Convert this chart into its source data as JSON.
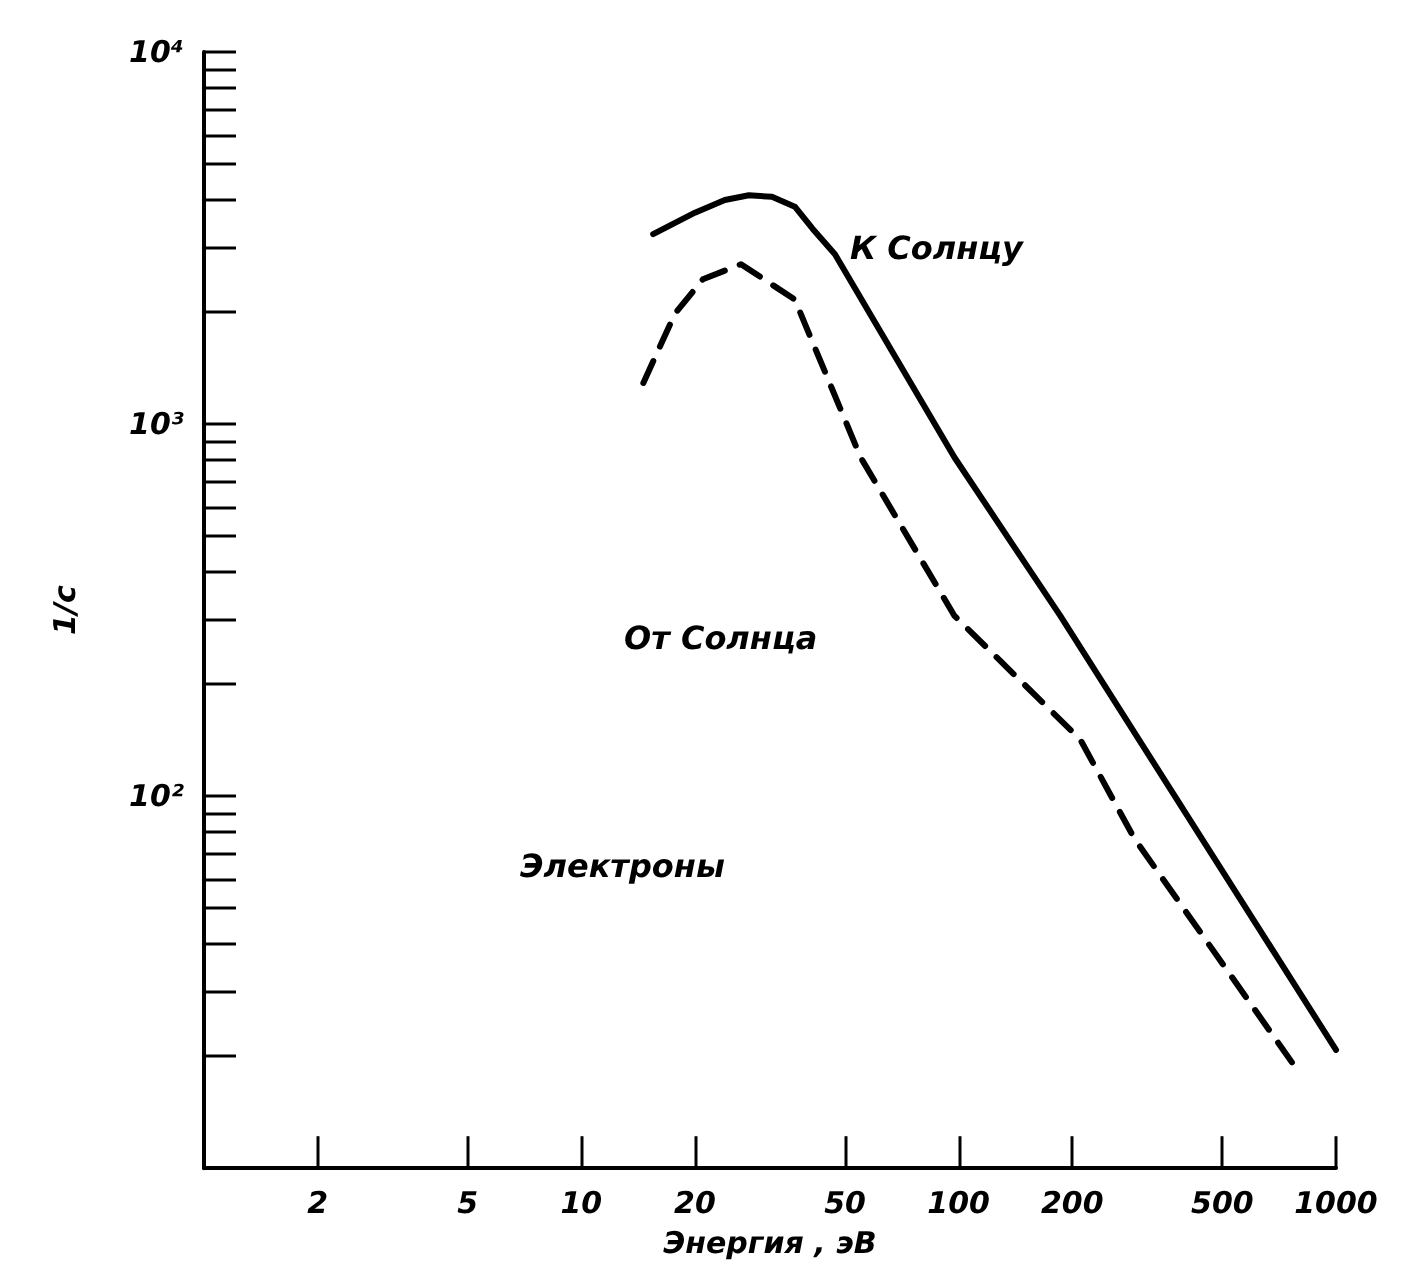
{
  "chart_data": {
    "type": "line",
    "xlabel": "Энергия , эВ",
    "ylabel": "1/с",
    "log": "xy",
    "grid": false,
    "marker": "none",
    "xlim": [
      1,
      1000
    ],
    "xticks": [
      2,
      5,
      10,
      20,
      50,
      100,
      200,
      500,
      1000
    ],
    "ylim": [
      10,
      10000
    ],
    "yticks": [
      {
        "value": 20,
        "label": null
      },
      {
        "value": 30,
        "label": null
      },
      {
        "value": 40,
        "label": null
      },
      {
        "value": 50,
        "label": null
      },
      {
        "value": 60,
        "label": null
      },
      {
        "value": 70,
        "label": null
      },
      {
        "value": 80,
        "label": null
      },
      {
        "value": 90,
        "label": null
      },
      {
        "value": 100,
        "label": "10²"
      },
      {
        "value": 200,
        "label": null
      },
      {
        "value": 300,
        "label": null
      },
      {
        "value": 400,
        "label": null
      },
      {
        "value": 500,
        "label": null
      },
      {
        "value": 600,
        "label": null
      },
      {
        "value": 700,
        "label": null
      },
      {
        "value": 800,
        "label": null
      },
      {
        "value": 900,
        "label": null
      },
      {
        "value": 1000,
        "label": "10³"
      },
      {
        "value": 2000,
        "label": null
      },
      {
        "value": 3000,
        "label": null
      },
      {
        "value": 4000,
        "label": null
      },
      {
        "value": 5000,
        "label": null
      },
      {
        "value": 6000,
        "label": null
      },
      {
        "value": 7000,
        "label": null
      },
      {
        "value": 8000,
        "label": null
      },
      {
        "value": 9000,
        "label": null
      },
      {
        "value": 10000,
        "label": "10⁴"
      }
    ],
    "series": [
      {
        "color": "#000000",
        "line_style": "solid",
        "x": [
          15.5,
          20,
          24,
          27.8,
          32,
          36.8,
          41,
          47,
          97.5,
          186,
          1000
        ],
        "values": [
          3240,
          3700,
          4000,
          4120,
          4080,
          3840,
          3350,
          2860,
          813,
          305,
          20.8
        ]
      },
      {
        "color": "#000000",
        "line_style": "dashed",
        "x": [
          14.6,
          17.7,
          21,
          26.5,
          36.8,
          55,
          97.5,
          210,
          292,
          774
        ],
        "values": [
          1290,
          1980,
          2450,
          2690,
          2160,
          813,
          305,
          142,
          77,
          18.9
        ]
      }
    ],
    "annotations": [
      "К Солнцу",
      "От Солнца",
      "Электроны"
    ]
  }
}
